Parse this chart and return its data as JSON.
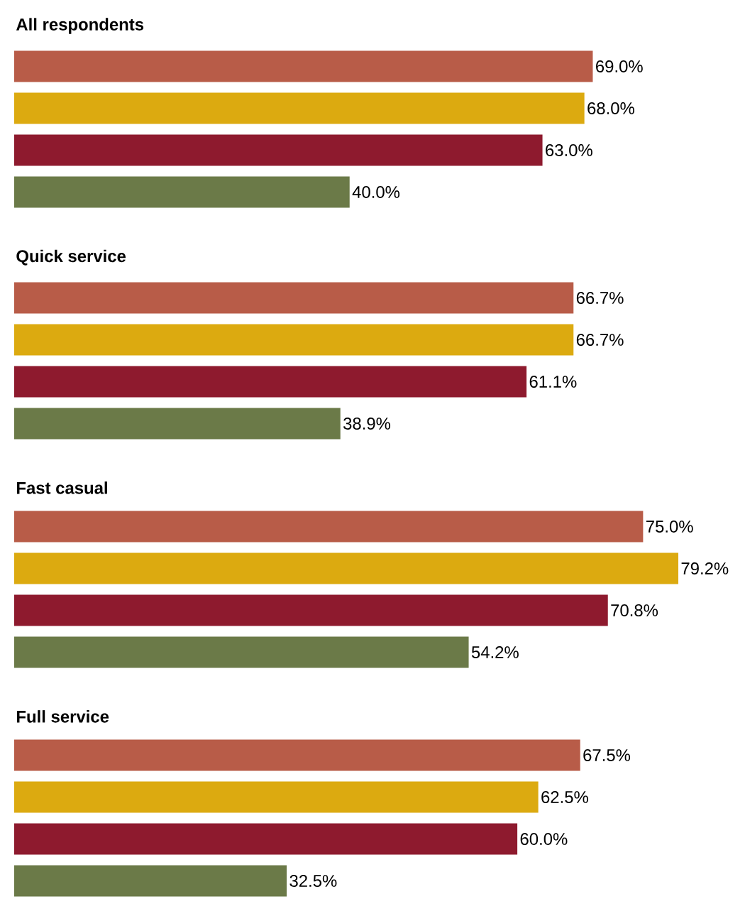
{
  "chart_data": [
    {
      "type": "bar",
      "orientation": "horizontal",
      "title": "All respondents",
      "categories": [
        null,
        null,
        null,
        null
      ],
      "values": [
        69.0,
        68.0,
        63.0,
        40.0
      ],
      "value_labels": [
        "69.0%",
        "68.0%",
        "63.0%",
        "40.0%"
      ],
      "colors": [
        "#b85c48",
        "#dcaa10",
        "#8e1a2e",
        "#6b7a48"
      ]
    },
    {
      "type": "bar",
      "orientation": "horizontal",
      "title": "Quick service",
      "categories": [
        null,
        null,
        null,
        null
      ],
      "values": [
        66.7,
        66.7,
        61.1,
        38.9
      ],
      "value_labels": [
        "66.7%",
        "66.7%",
        "61.1%",
        "38.9%"
      ],
      "colors": [
        "#b85c48",
        "#dcaa10",
        "#8e1a2e",
        "#6b7a48"
      ]
    },
    {
      "type": "bar",
      "orientation": "horizontal",
      "title": "Fast casual",
      "categories": [
        null,
        null,
        null,
        null
      ],
      "values": [
        75.0,
        79.2,
        70.8,
        54.2
      ],
      "value_labels": [
        "75.0%",
        "79.2%",
        "70.8%",
        "54.2%"
      ],
      "colors": [
        "#b85c48",
        "#dcaa10",
        "#8e1a2e",
        "#6b7a48"
      ]
    },
    {
      "type": "bar",
      "orientation": "horizontal",
      "title": "Full service",
      "categories": [
        null,
        null,
        null,
        null
      ],
      "values": [
        67.5,
        62.5,
        60.0,
        32.5
      ],
      "value_labels": [
        "67.5%",
        "62.5%",
        "60.0%",
        "32.5%"
      ],
      "colors": [
        "#b85c48",
        "#dcaa10",
        "#8e1a2e",
        "#6b7a48"
      ]
    }
  ]
}
